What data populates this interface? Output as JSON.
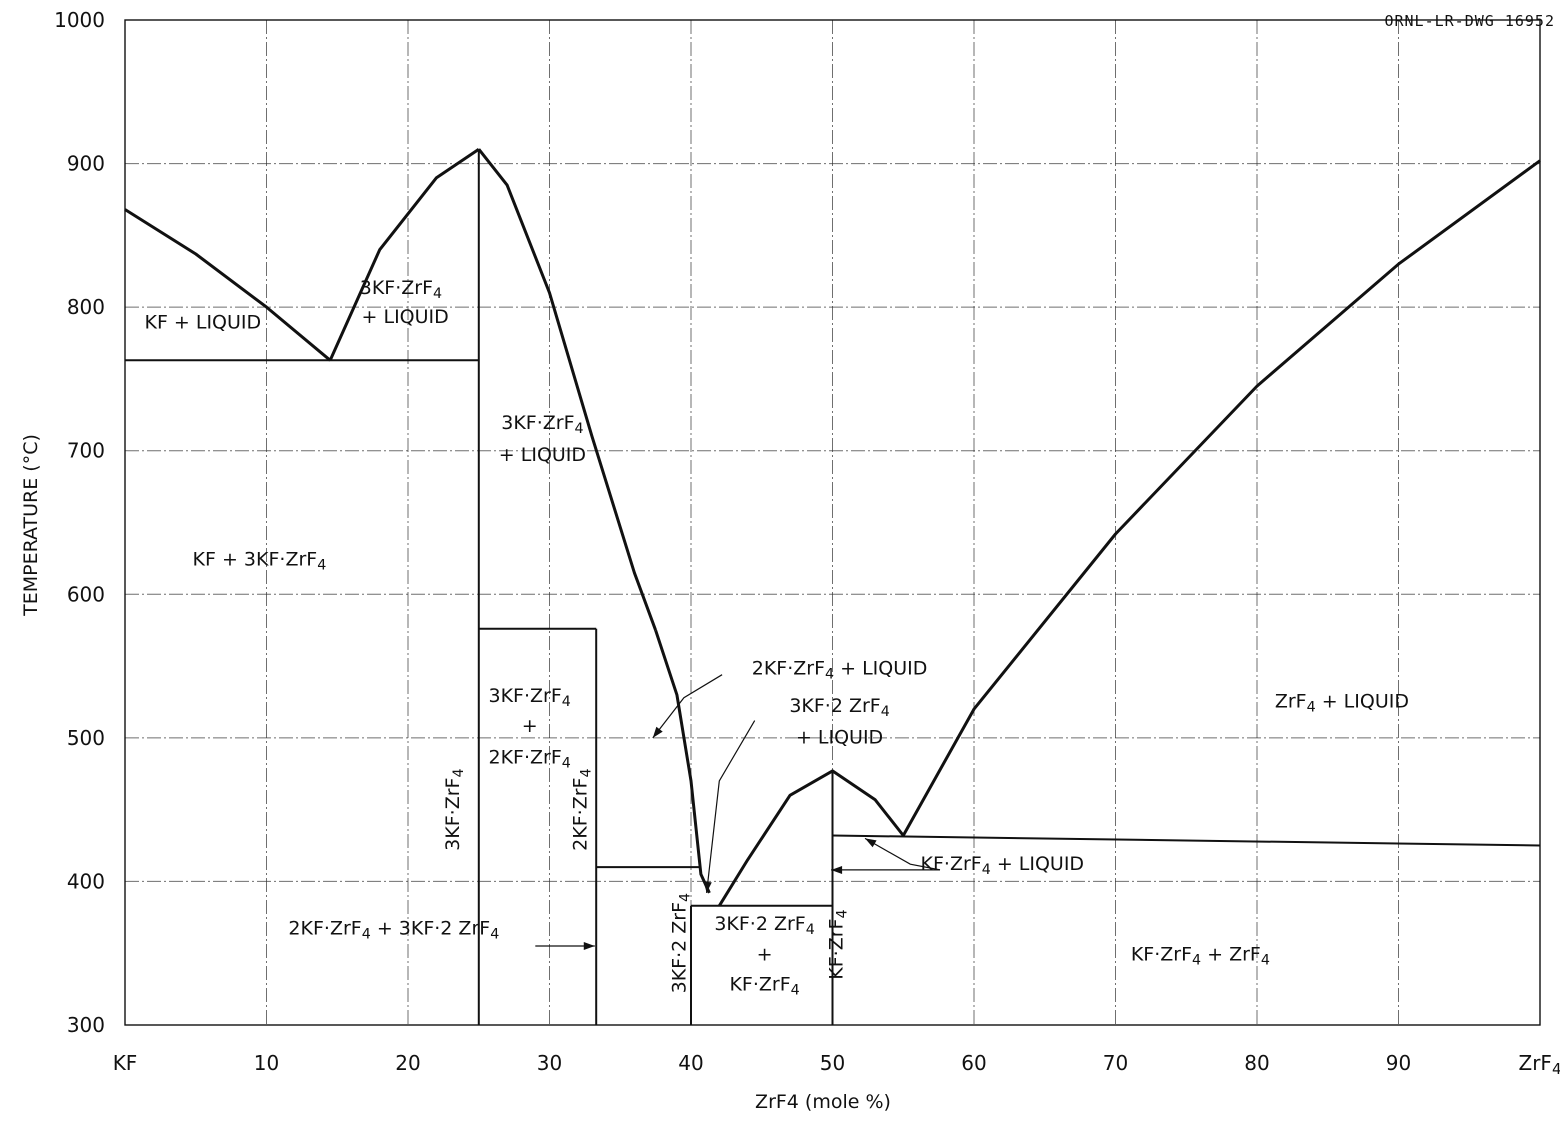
{
  "drawing_number": "ORNL-LR-DWG 16952",
  "chart_data": {
    "type": "line",
    "title": "",
    "xlabel": "ZrF4 (mole %)",
    "ylabel": "TEMPERATURE (°C)",
    "xlim": [
      0,
      100
    ],
    "ylim": [
      300,
      1000
    ],
    "grid": true,
    "x_ticks": [
      {
        "value": 0,
        "label": "KF"
      },
      {
        "value": 10,
        "label": "10"
      },
      {
        "value": 20,
        "label": "20"
      },
      {
        "value": 30,
        "label": "30"
      },
      {
        "value": 40,
        "label": "40"
      },
      {
        "value": 50,
        "label": "50"
      },
      {
        "value": 60,
        "label": "60"
      },
      {
        "value": 70,
        "label": "70"
      },
      {
        "value": 80,
        "label": "80"
      },
      {
        "value": 90,
        "label": "90"
      },
      {
        "value": 100,
        "label": "ZrF4"
      }
    ],
    "y_ticks": [
      {
        "value": 300,
        "label": "300"
      },
      {
        "value": 400,
        "label": "400"
      },
      {
        "value": 500,
        "label": "500"
      },
      {
        "value": 600,
        "label": "600"
      },
      {
        "value": 700,
        "label": "700"
      },
      {
        "value": 800,
        "label": "800"
      },
      {
        "value": 900,
        "label": "900"
      },
      {
        "value": 1000,
        "label": "1000"
      }
    ],
    "series": [
      {
        "x": [
          0,
          5,
          10,
          14.5
        ],
        "y": [
          868,
          837,
          800,
          763
        ]
      },
      {
        "x": [
          14.5,
          18,
          22,
          25
        ],
        "y": [
          763,
          840,
          890,
          910
        ]
      },
      {
        "x": [
          25,
          27,
          30,
          33,
          36,
          37.5
        ],
        "y": [
          910,
          885,
          810,
          710,
          615,
          575
        ]
      },
      {
        "x": [
          37.5,
          39,
          40,
          40.7,
          41.3
        ],
        "y": [
          575,
          530,
          470,
          405,
          392
        ]
      },
      {
        "x": [
          42,
          44,
          47,
          50,
          53,
          55
        ],
        "y": [
          383,
          415,
          460,
          477,
          457,
          432
        ]
      },
      {
        "x": [
          55,
          60,
          70,
          80,
          90,
          100
        ],
        "y": [
          432,
          520,
          642,
          745,
          830,
          902
        ]
      },
      {
        "x": [
          0,
          25
        ],
        "y": [
          763,
          763
        ]
      },
      {
        "x": [
          25,
          25
        ],
        "y": [
          300,
          910
        ]
      },
      {
        "x": [
          25,
          33.3
        ],
        "y": [
          576,
          576
        ]
      },
      {
        "x": [
          33.3,
          33.3
        ],
        "y": [
          300,
          576
        ]
      },
      {
        "x": [
          33.3,
          40.7
        ],
        "y": [
          410,
          410
        ]
      },
      {
        "x": [
          40,
          50
        ],
        "y": [
          383,
          383
        ]
      },
      {
        "x": [
          40,
          40
        ],
        "y": [
          300,
          383
        ]
      },
      {
        "x": [
          50,
          50
        ],
        "y": [
          300,
          477
        ]
      },
      {
        "x": [
          50,
          100
        ],
        "y": [
          432,
          425
        ]
      }
    ],
    "annotations": [
      {
        "text": "KF + LIQUID",
        "x": 5.5,
        "y": 785
      },
      {
        "text": "3KF·ZrF4",
        "x": 19.5,
        "y": 809
      },
      {
        "text": "+ LIQUID",
        "x": 19.8,
        "y": 789
      },
      {
        "text": "3KF·ZrF4",
        "x": 29.5,
        "y": 715
      },
      {
        "text": "+ LIQUID",
        "x": 29.5,
        "y": 693
      },
      {
        "text": "KF + 3KF·ZrF4",
        "x": 9.5,
        "y": 620
      },
      {
        "text": "3KF·ZrF4",
        "x": 28.6,
        "y": 525
      },
      {
        "text": "+",
        "x": 28.6,
        "y": 504
      },
      {
        "text": "2KF·ZrF4",
        "x": 28.6,
        "y": 482
      },
      {
        "text": "3KF·ZrF4",
        "x": 23.6,
        "y": 450,
        "rotate": true
      },
      {
        "text": "2KF·ZrF4",
        "x": 32.6,
        "y": 450,
        "rotate": true
      },
      {
        "text": "2KF·ZrF4 + LIQUID",
        "x": 50.5,
        "y": 544
      },
      {
        "text": "3KF·2 ZrF4",
        "x": 50.5,
        "y": 518
      },
      {
        "text": "+ LIQUID",
        "x": 50.5,
        "y": 496
      },
      {
        "text": "ZrF4 + LIQUID",
        "x": 86,
        "y": 521
      },
      {
        "text": "KF·ZrF4 + LIQUID",
        "x": 62,
        "y": 408
      },
      {
        "text": "2KF·ZrF4 + 3KF·2 ZrF4",
        "x": 19,
        "y": 363
      },
      {
        "text": "3KF·2 ZrF4",
        "x": 39.6,
        "y": 357,
        "rotate": true
      },
      {
        "text": "3KF·2 ZrF4",
        "x": 45.2,
        "y": 366
      },
      {
        "text": "+",
        "x": 45.2,
        "y": 345
      },
      {
        "text": "KF·ZrF4",
        "x": 45.2,
        "y": 324
      },
      {
        "text": "KF·ZrF4",
        "x": 50.7,
        "y": 356,
        "rotate": true
      },
      {
        "text": "KF·ZrF4 + ZrF4",
        "x": 76,
        "y": 345
      }
    ]
  }
}
